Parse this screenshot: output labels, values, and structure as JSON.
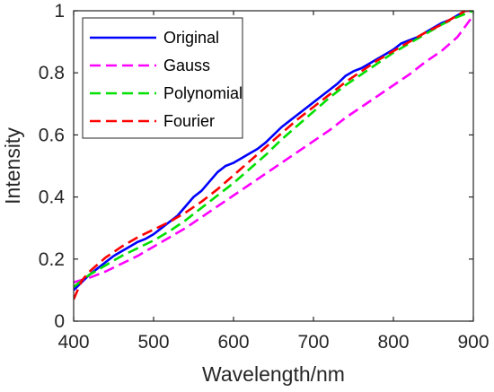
{
  "chart_data": {
    "type": "line",
    "xlabel": "Wavelength/nm",
    "ylabel": "Intensity",
    "xlim": [
      400,
      900
    ],
    "ylim": [
      0,
      1
    ],
    "xticks": [
      400,
      500,
      600,
      700,
      800,
      900
    ],
    "yticks": [
      0,
      0.2,
      0.4,
      0.6,
      0.8,
      1
    ],
    "xtick_labels": [
      "400",
      "500",
      "600",
      "700",
      "800",
      "900"
    ],
    "ytick_labels": [
      "0",
      "0.2",
      "0.4",
      "0.6",
      "0.8",
      "1"
    ],
    "grid": false,
    "legend_position": "top-left",
    "series": [
      {
        "name": "Original",
        "color": "#0000ff",
        "style": "solid",
        "x": [
          400,
          410,
          420,
          430,
          440,
          450,
          460,
          470,
          480,
          490,
          500,
          510,
          520,
          530,
          540,
          550,
          560,
          570,
          580,
          590,
          600,
          610,
          620,
          630,
          640,
          650,
          660,
          670,
          680,
          690,
          700,
          710,
          720,
          730,
          740,
          750,
          760,
          770,
          780,
          790,
          800,
          810,
          820,
          830,
          840,
          850,
          860,
          870,
          880,
          890,
          900
        ],
        "y": [
          0.1,
          0.125,
          0.15,
          0.17,
          0.19,
          0.21,
          0.225,
          0.24,
          0.255,
          0.265,
          0.28,
          0.3,
          0.32,
          0.34,
          0.37,
          0.4,
          0.42,
          0.45,
          0.48,
          0.5,
          0.51,
          0.525,
          0.54,
          0.555,
          0.575,
          0.6,
          0.625,
          0.645,
          0.665,
          0.685,
          0.705,
          0.725,
          0.745,
          0.765,
          0.79,
          0.805,
          0.815,
          0.83,
          0.845,
          0.86,
          0.875,
          0.895,
          0.905,
          0.915,
          0.93,
          0.945,
          0.96,
          0.97,
          0.985,
          1.0,
          1.0
        ]
      },
      {
        "name": "Gauss",
        "color": "#ff00ff",
        "style": "dashed",
        "x": [
          400,
          420,
          440,
          460,
          480,
          500,
          520,
          540,
          560,
          580,
          600,
          620,
          640,
          660,
          680,
          700,
          720,
          740,
          760,
          780,
          800,
          820,
          840,
          860,
          880,
          900
        ],
        "y": [
          0.125,
          0.14,
          0.16,
          0.185,
          0.21,
          0.24,
          0.27,
          0.3,
          0.335,
          0.37,
          0.405,
          0.44,
          0.475,
          0.51,
          0.545,
          0.58,
          0.615,
          0.655,
          0.69,
          0.725,
          0.76,
          0.795,
          0.835,
          0.87,
          0.915,
          0.985
        ]
      },
      {
        "name": "Polynomial",
        "color": "#00e000",
        "style": "dashed",
        "x": [
          400,
          420,
          440,
          460,
          480,
          500,
          520,
          540,
          560,
          580,
          600,
          620,
          640,
          660,
          680,
          700,
          720,
          740,
          760,
          780,
          800,
          820,
          840,
          860,
          880,
          900
        ],
        "y": [
          0.11,
          0.15,
          0.18,
          0.21,
          0.235,
          0.26,
          0.29,
          0.325,
          0.365,
          0.405,
          0.445,
          0.49,
          0.535,
          0.585,
          0.63,
          0.675,
          0.72,
          0.76,
          0.795,
          0.83,
          0.865,
          0.895,
          0.925,
          0.955,
          0.98,
          1.0
        ]
      },
      {
        "name": "Fourier",
        "color": "#ff0000",
        "style": "dashed",
        "x": [
          400,
          410,
          420,
          440,
          460,
          480,
          500,
          520,
          540,
          560,
          580,
          600,
          620,
          640,
          660,
          680,
          700,
          720,
          740,
          760,
          780,
          800,
          820,
          840,
          860,
          880,
          890,
          900
        ],
        "y": [
          0.07,
          0.13,
          0.16,
          0.205,
          0.24,
          0.27,
          0.295,
          0.32,
          0.35,
          0.385,
          0.425,
          0.47,
          0.515,
          0.56,
          0.605,
          0.65,
          0.69,
          0.73,
          0.77,
          0.805,
          0.84,
          0.87,
          0.9,
          0.93,
          0.955,
          0.985,
          1.0,
          1.0
        ]
      }
    ]
  }
}
